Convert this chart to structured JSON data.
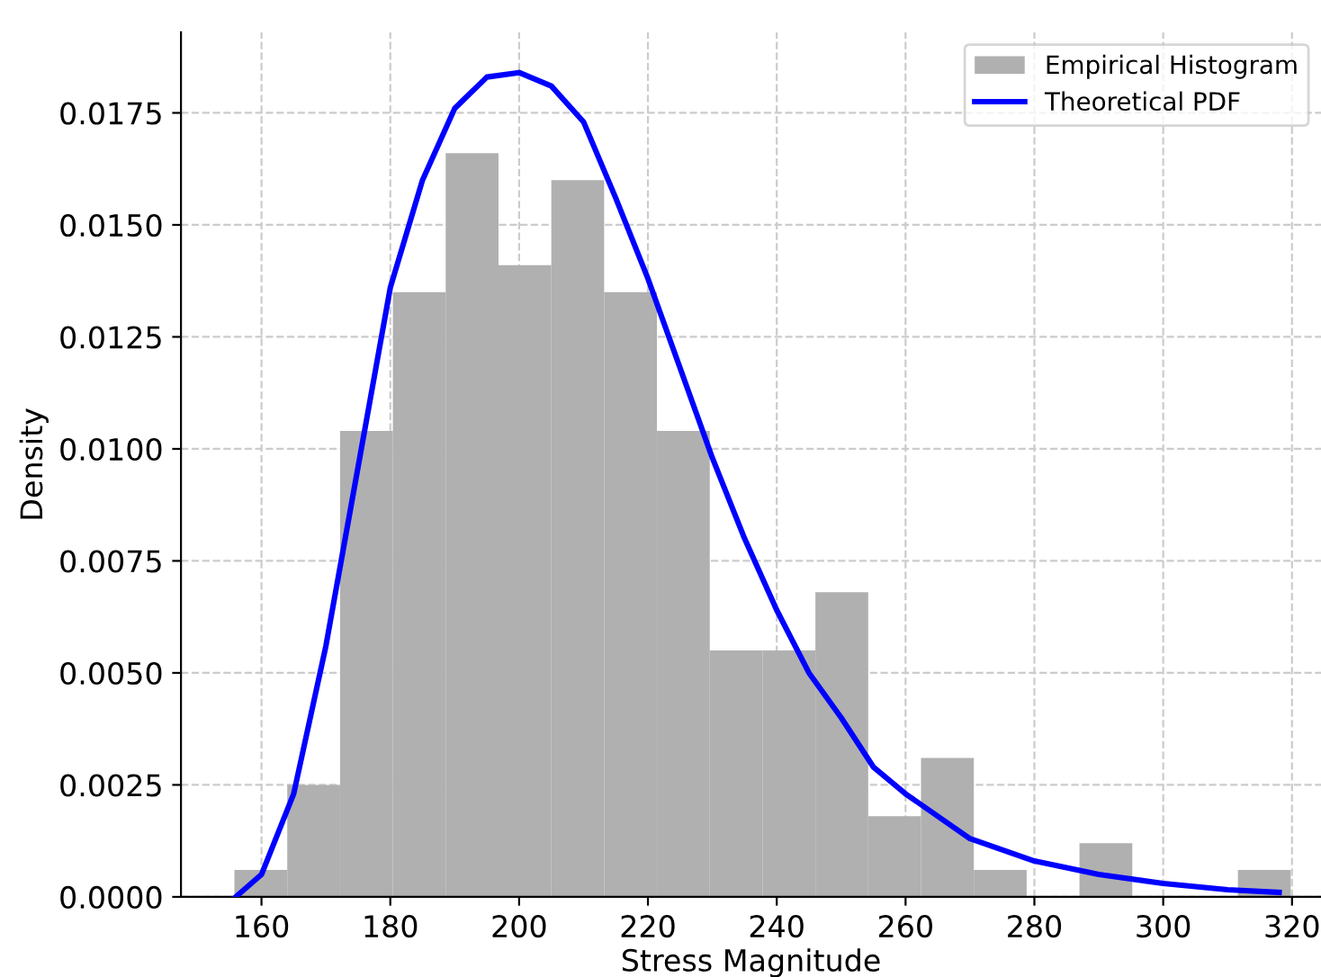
{
  "chart_data": {
    "type": "histogram",
    "xlabel": "Stress Magnitude",
    "ylabel": "Density",
    "bins": [
      155.8,
      164.0,
      172.2,
      180.4,
      188.6,
      196.8,
      205.0,
      213.2,
      221.4,
      229.6,
      237.8,
      246.0,
      254.2,
      262.4,
      270.6,
      278.8,
      287.0,
      295.2,
      303.4,
      311.6,
      319.8
    ],
    "series": [
      {
        "name": "Empirical Histogram",
        "color": "#b0b0b0",
        "values": [
          0.0006,
          0.0025,
          0.0104,
          0.0135,
          0.0166,
          0.0141,
          0.016,
          0.0135,
          0.0104,
          0.0055,
          0.0055,
          0.0068,
          0.0018,
          0.0031,
          0.0006,
          0,
          0.0012,
          0,
          0,
          0.0006
        ]
      },
      {
        "type": "line",
        "name": "Theoretical PDF",
        "color": "#0000ff",
        "x": [
          156,
          160,
          165,
          170,
          175,
          180,
          185,
          190,
          195,
          200,
          205,
          210,
          215,
          220,
          225,
          230,
          235,
          240,
          245,
          250,
          255,
          260,
          270,
          280,
          290,
          300,
          310,
          318
        ],
        "values": [
          0.0,
          0.0005,
          0.0023,
          0.0056,
          0.0096,
          0.0136,
          0.016,
          0.0176,
          0.0183,
          0.0184,
          0.0181,
          0.0173,
          0.0156,
          0.0138,
          0.0118,
          0.0098,
          0.008,
          0.0064,
          0.005,
          0.004,
          0.0029,
          0.0023,
          0.0013,
          0.0008,
          0.0005,
          0.0003,
          0.00016,
          0.0001
        ]
      }
    ],
    "xlim": [
      147.5,
      324.5
    ],
    "ylim": [
      0,
      0.0193
    ],
    "xticks": [
      160,
      180,
      200,
      220,
      240,
      260,
      280,
      300,
      320
    ],
    "yticks": [
      {
        "value": 0,
        "label": "0.0000"
      },
      {
        "value": 0.0025,
        "label": "0.0025"
      },
      {
        "value": 0.005,
        "label": "0.0050"
      },
      {
        "value": 0.0075,
        "label": "0.0075"
      },
      {
        "value": 0.01,
        "label": "0.0100"
      },
      {
        "value": 0.0125,
        "label": "0.0125"
      },
      {
        "value": 0.015,
        "label": "0.0150"
      },
      {
        "value": 0.0175,
        "label": "0.0175"
      }
    ],
    "grid": true,
    "legend": "top right"
  }
}
